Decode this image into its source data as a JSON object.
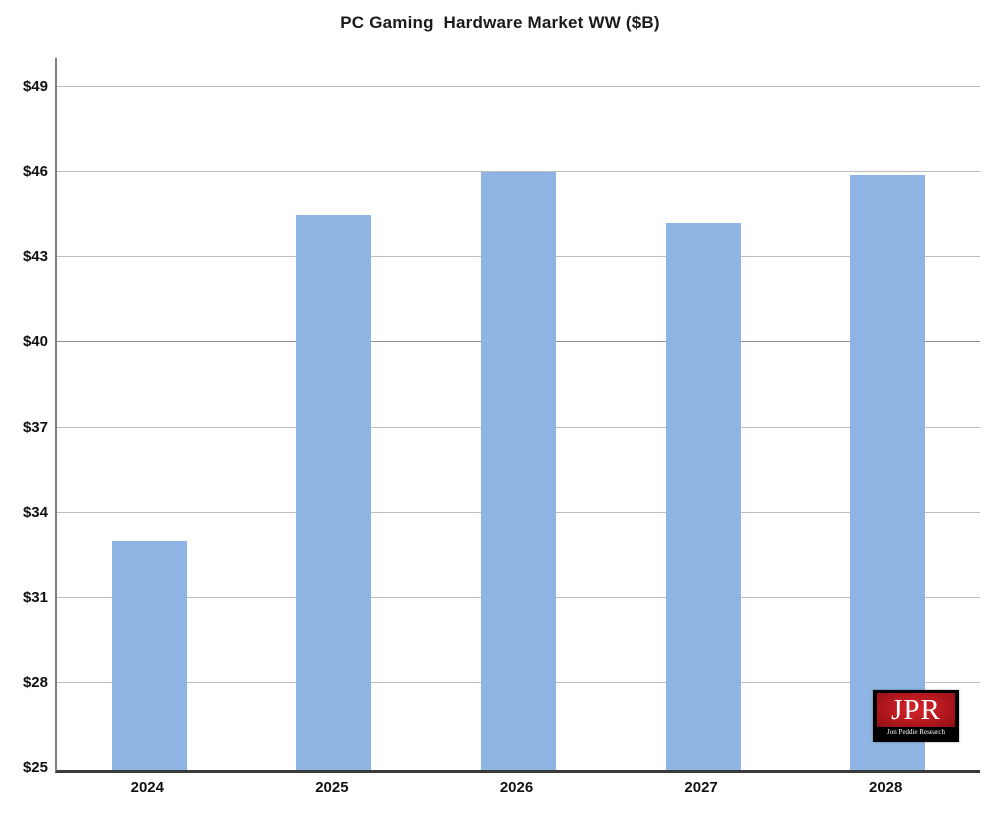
{
  "title": "PC Gaming  Hardware Market WW ($B)",
  "chart_data": {
    "type": "bar",
    "title": "PC Gaming  Hardware Market WW ($B)",
    "categories": [
      "2024",
      "2025",
      "2026",
      "2027",
      "2028"
    ],
    "values": [
      33.0,
      44.5,
      46.0,
      44.2,
      45.9
    ],
    "xlabel": "",
    "ylabel": "",
    "ylim": [
      25,
      49
    ],
    "yticks": [
      25,
      28,
      31,
      34,
      37,
      40,
      43,
      46,
      49
    ],
    "ytick_labels": [
      "$25",
      "$28",
      "$31",
      "$34",
      "$37",
      "$40",
      "$43",
      "$46",
      "$49"
    ],
    "grid": true,
    "legend": false,
    "bar_color": "#8EB4E3",
    "gridline_color": "#bdbdbd",
    "emphasized_gridline_value": 40
  },
  "logo": {
    "text": "JPR",
    "subtext": "Jon Peddie Research",
    "bg_color": "#b5171e",
    "frame_color": "#000000",
    "text_color": "#ffffff"
  }
}
